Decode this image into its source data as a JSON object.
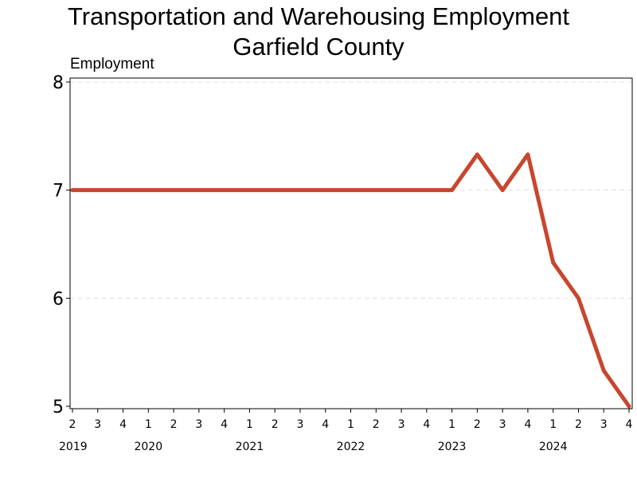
{
  "chart_data": {
    "type": "line",
    "title_line1": "Transportation and Warehousing Employment",
    "title_line2": "Garfield County",
    "ylabel": "Employment",
    "xlabel": "",
    "ylim": [
      5,
      8
    ],
    "yticks": [
      5,
      6,
      7,
      8
    ],
    "grid": true,
    "line_color": "#c8462e",
    "x": [
      "2019 Q2",
      "2019 Q3",
      "2019 Q4",
      "2020 Q1",
      "2020 Q2",
      "2020 Q3",
      "2020 Q4",
      "2021 Q1",
      "2021 Q2",
      "2021 Q3",
      "2021 Q4",
      "2022 Q1",
      "2022 Q2",
      "2022 Q3",
      "2022 Q4",
      "2023 Q1",
      "2023 Q2",
      "2023 Q3",
      "2023 Q4",
      "2024 Q1",
      "2024 Q2",
      "2024 Q3",
      "2024 Q4"
    ],
    "quarter_labels": [
      "2",
      "3",
      "4",
      "1",
      "2",
      "3",
      "4",
      "1",
      "2",
      "3",
      "4",
      "1",
      "2",
      "3",
      "4",
      "1",
      "2",
      "3",
      "4",
      "1",
      "2",
      "3",
      "4"
    ],
    "year_labels": [
      {
        "label": "2019",
        "at_index": 0
      },
      {
        "label": "2020",
        "at_index": 3
      },
      {
        "label": "2021",
        "at_index": 7
      },
      {
        "label": "2022",
        "at_index": 11
      },
      {
        "label": "2023",
        "at_index": 15
      },
      {
        "label": "2024",
        "at_index": 19
      }
    ],
    "values": [
      7,
      7,
      7,
      7,
      7,
      7,
      7,
      7,
      7,
      7,
      7,
      7,
      7,
      7,
      7,
      7,
      7.33,
      7,
      7.33,
      6.33,
      6,
      5.33,
      5
    ]
  }
}
